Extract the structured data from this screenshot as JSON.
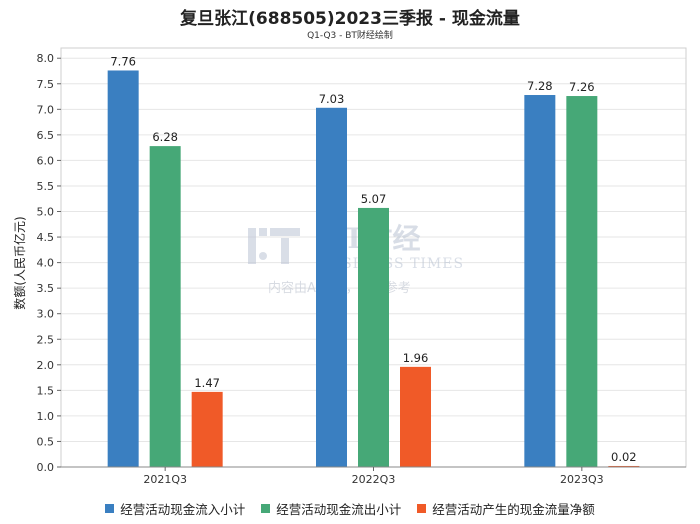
{
  "chart_data": {
    "type": "bar",
    "title": "复旦张江(688505)2023三季报 - 现金流量",
    "subtitle": "Q1-Q3 - BT财经绘制",
    "ylabel": "数额(人民币亿元)",
    "xlabel": "",
    "categories": [
      "2021Q3",
      "2022Q3",
      "2023Q3"
    ],
    "ylim": [
      0,
      8.2
    ],
    "yticks": [
      "0.0",
      "0.5",
      "1.0",
      "1.5",
      "2.0",
      "2.5",
      "3.0",
      "3.5",
      "4.0",
      "4.5",
      "5.0",
      "5.5",
      "6.0",
      "6.5",
      "7.0",
      "7.5",
      "8.0"
    ],
    "grid": true,
    "legend_position": "bottom",
    "series": [
      {
        "name": "经营活动现金流入小计",
        "color": "#3a7fc1",
        "values": [
          7.76,
          7.03,
          7.28
        ],
        "labels": [
          "7.76",
          "7.03",
          "7.28"
        ]
      },
      {
        "name": "经营活动现金流出小计",
        "color": "#46a877",
        "values": [
          6.28,
          5.07,
          7.26
        ],
        "labels": [
          "6.28",
          "5.07",
          "7.26"
        ]
      },
      {
        "name": "经营活动产生的现金流量净额",
        "color": "#f05a28",
        "values": [
          1.47,
          1.96,
          0.02
        ],
        "labels": [
          "1.47",
          "1.96",
          "0.02"
        ]
      }
    ]
  },
  "watermark": {
    "logo_text": "BT财经",
    "tagline": "BUSINESS TIMES",
    "note": "内容由AI生成，仅供参考"
  }
}
